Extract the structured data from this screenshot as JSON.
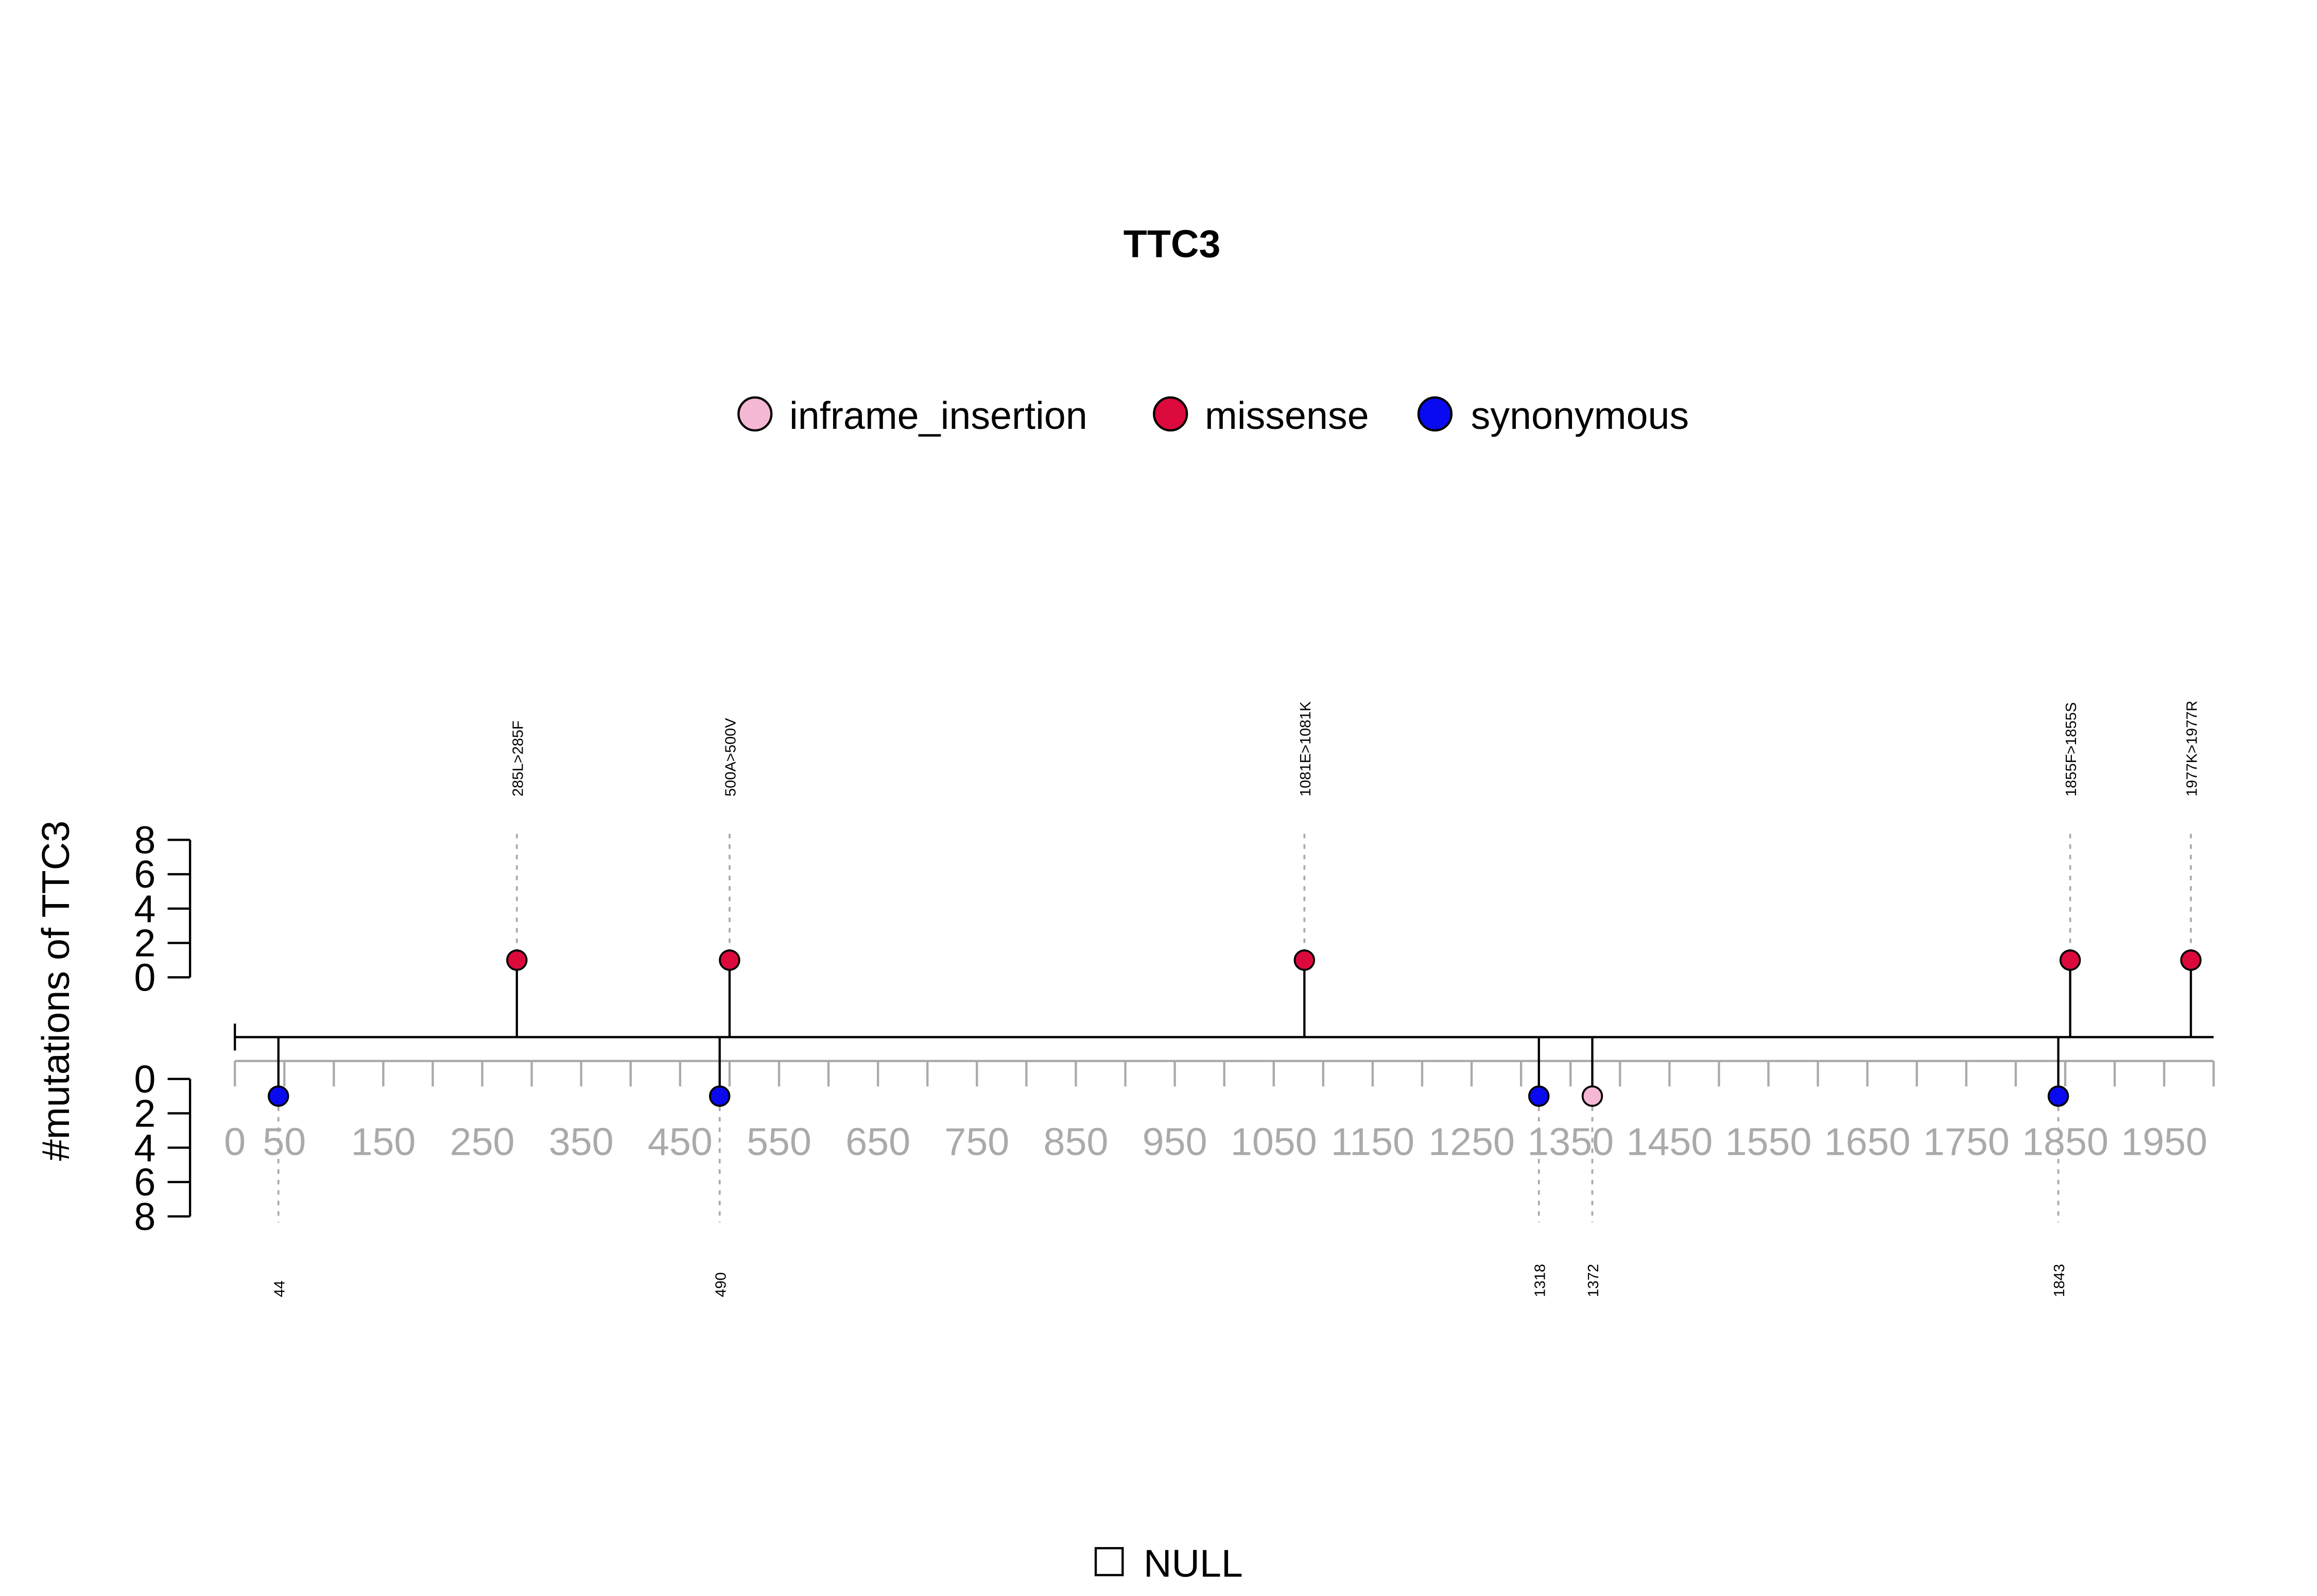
{
  "chart_data": {
    "type": "lollipop",
    "title": "TTC3",
    "ylabel": "#mutations of TTC3",
    "x_tick_labels": [
      "0",
      "50",
      "150",
      "250",
      "350",
      "450",
      "550",
      "650",
      "750",
      "850",
      "950",
      "1050",
      "1150",
      "1250",
      "1350",
      "1450",
      "1550",
      "1650",
      "1750",
      "1850",
      "1950"
    ],
    "x_tick_values": [
      0,
      50,
      150,
      250,
      350,
      450,
      550,
      650,
      750,
      850,
      950,
      1050,
      1150,
      1250,
      1350,
      1450,
      1550,
      1650,
      1750,
      1850,
      1950
    ],
    "xlim": [
      0,
      2000
    ],
    "y_ticks": [
      0,
      2,
      4,
      6,
      8
    ],
    "legend": [
      {
        "label": "inframe_insertion",
        "color": "#F4B8D4"
      },
      {
        "label": "missense",
        "color": "#DC0A3C"
      },
      {
        "label": "synonymous",
        "color": "#0A0AF0"
      }
    ],
    "upper_mutations": [
      {
        "position": 285,
        "label": "285L>285F",
        "type": "missense",
        "count": 1
      },
      {
        "position": 500,
        "label": "500A>500V",
        "type": "missense",
        "count": 1
      },
      {
        "position": 1081,
        "label": "1081E>1081K",
        "type": "missense",
        "count": 1
      },
      {
        "position": 1855,
        "label": "1855F>1855S",
        "type": "missense",
        "count": 1
      },
      {
        "position": 1977,
        "label": "1977K>1977R",
        "type": "missense",
        "count": 1
      }
    ],
    "lower_mutations": [
      {
        "position": 44,
        "label": "44",
        "type": "synonymous",
        "count": 1
      },
      {
        "position": 490,
        "label": "490",
        "type": "synonymous",
        "count": 1
      },
      {
        "position": 1318,
        "label": "1318",
        "type": "synonymous",
        "count": 1
      },
      {
        "position": 1372,
        "label": "1372",
        "type": "inframe_insertion",
        "count": 1
      },
      {
        "position": 1843,
        "label": "1843",
        "type": "synonymous",
        "count": 1
      }
    ],
    "domain_legend": "NULL"
  }
}
